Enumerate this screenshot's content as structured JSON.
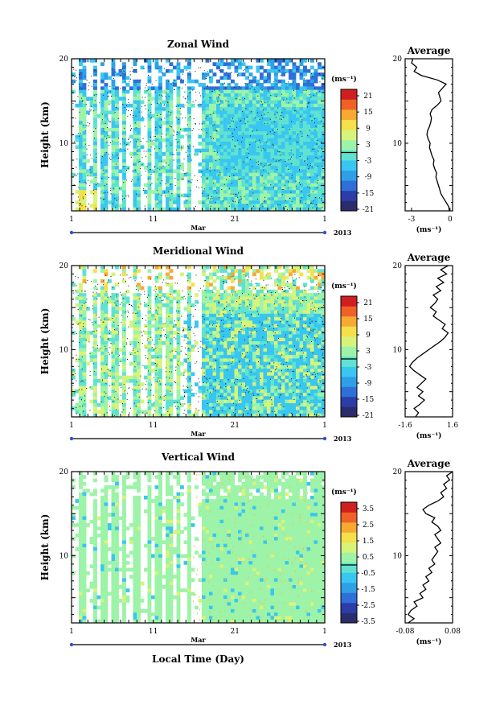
{
  "figure": {
    "xlabel": "Local Time (Day)"
  },
  "chart_data": [
    {
      "type": "heatmap",
      "title": "Zonal Wind",
      "ylabel": "Height (km)",
      "yticks": [
        "20",
        "10"
      ],
      "xticks": [
        "1",
        "11",
        "21",
        "1"
      ],
      "month": "Mar",
      "year": "2013",
      "colorbar": {
        "unit": "(ms⁻¹)",
        "ticks": [
          "21",
          "15",
          "9",
          "3",
          "-3",
          "-9",
          "-15",
          "-21"
        ]
      }
    },
    {
      "type": "line",
      "title": "Average",
      "ylabel": "Height (km)",
      "yticks": [
        "20",
        "10"
      ],
      "xticks": [
        "-3",
        "0"
      ],
      "xlabel": "(ms⁻¹)",
      "xlim": [
        -3.5,
        0.2
      ],
      "ylim": [
        2,
        20
      ],
      "x": [
        -0.05,
        -0.1,
        -0.3,
        -0.5,
        -0.7,
        -0.8,
        -0.9,
        -1.0,
        -1.1,
        -1.05,
        -1.2,
        -1.3,
        -1.25,
        -1.4,
        -1.5,
        -1.6,
        -1.55,
        -1.7,
        -1.8,
        -1.75,
        -1.6,
        -1.5,
        -1.45,
        -1.55,
        -1.4,
        -1.0,
        -0.7,
        -0.8,
        -0.9,
        -0.6,
        -0.3,
        -1.0,
        -2.2,
        -2.8,
        -2.6,
        -3.0,
        -2.9
      ],
      "y": [
        2,
        2.5,
        3,
        3.5,
        4,
        4.5,
        5,
        5.5,
        6,
        6.5,
        7,
        7.5,
        8,
        8.5,
        9,
        9.5,
        10,
        10.5,
        11,
        11.5,
        12,
        12.5,
        13,
        13.5,
        14,
        14.5,
        15,
        15.5,
        16,
        16.5,
        17,
        17.5,
        18,
        18.5,
        19,
        19.5,
        20
      ]
    },
    {
      "type": "heatmap",
      "title": "Meridional Wind",
      "ylabel": "Height (km)",
      "yticks": [
        "20",
        "10"
      ],
      "xticks": [
        "1",
        "11",
        "21",
        "1"
      ],
      "month": "Mar",
      "year": "2013",
      "colorbar": {
        "unit": "(ms⁻¹)",
        "ticks": [
          "21",
          "15",
          "9",
          "3",
          "-3",
          "-9",
          "-15",
          "-21"
        ]
      }
    },
    {
      "type": "line",
      "title": "Average",
      "ylabel": "Height (km)",
      "yticks": [
        "20",
        "10"
      ],
      "xticks": [
        "-1.6",
        "1.6"
      ],
      "xlabel": "(ms⁻¹)",
      "xlim": [
        -1.6,
        1.6
      ],
      "ylim": [
        2,
        20
      ],
      "x": [
        -0.9,
        -0.7,
        -1.0,
        -0.6,
        -0.3,
        -0.7,
        -0.4,
        -0.8,
        -0.5,
        -0.2,
        -0.6,
        -1.0,
        -1.3,
        -1.1,
        -0.8,
        -0.4,
        0.0,
        0.4,
        0.8,
        1.1,
        1.3,
        0.9,
        1.1,
        0.7,
        0.3,
        0.5,
        0.1,
        0.4,
        0.6,
        0.3,
        0.8,
        0.5,
        1.0,
        0.6,
        1.2,
        0.8,
        1.3
      ],
      "y": [
        2,
        2.5,
        3,
        3.5,
        4,
        4.5,
        5,
        5.5,
        6,
        6.5,
        7,
        7.5,
        8,
        8.5,
        9,
        9.5,
        10,
        10.5,
        11,
        11.5,
        12,
        12.5,
        13,
        13.5,
        14,
        14.5,
        15,
        15.5,
        16,
        16.5,
        17,
        17.5,
        18,
        18.5,
        19,
        19.5,
        20
      ]
    },
    {
      "type": "heatmap",
      "title": "Vertical Wind",
      "ylabel": "Height (km)",
      "yticks": [
        "20",
        "10"
      ],
      "xticks": [
        "1",
        "11",
        "21",
        "1"
      ],
      "month": "Mar",
      "year": "2013",
      "colorbar": {
        "unit": "(ms⁻¹)",
        "ticks": [
          "3.5",
          "2.5",
          "1.5",
          "0.5",
          "-0.5",
          "-1.5",
          "-2.5",
          "-3.5"
        ]
      }
    },
    {
      "type": "line",
      "title": "Average",
      "ylabel": "Height (km)",
      "yticks": [
        "20",
        "10"
      ],
      "xticks": [
        "-0.08",
        "0.08"
      ],
      "xlabel": "(ms⁻¹)",
      "xlim": [
        -0.08,
        0.08
      ],
      "ylim": [
        2,
        20
      ],
      "x": [
        -0.07,
        -0.05,
        -0.07,
        -0.06,
        -0.04,
        -0.05,
        -0.02,
        -0.03,
        -0.01,
        -0.02,
        0.0,
        -0.01,
        0.01,
        0.0,
        0.02,
        0.01,
        0.02,
        0.03,
        0.02,
        0.04,
        0.03,
        0.02,
        0.04,
        0.03,
        0.01,
        0.02,
        -0.01,
        -0.02,
        0.0,
        0.03,
        0.05,
        0.04,
        0.06,
        0.05,
        0.07,
        0.06,
        0.08
      ],
      "y": [
        2,
        2.5,
        3,
        3.5,
        4,
        4.5,
        5,
        5.5,
        6,
        6.5,
        7,
        7.5,
        8,
        8.5,
        9,
        9.5,
        10,
        10.5,
        11,
        11.5,
        12,
        12.5,
        13,
        13.5,
        14,
        14.5,
        15,
        15.5,
        16,
        16.5,
        17,
        17.5,
        18,
        18.5,
        19,
        19.5,
        20
      ]
    }
  ]
}
